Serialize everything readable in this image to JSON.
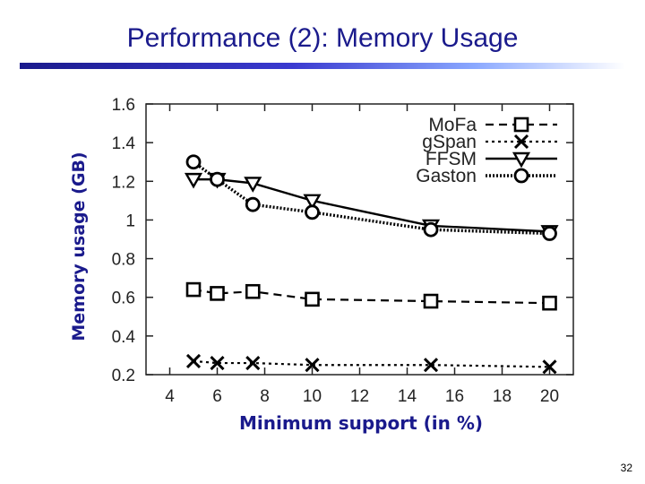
{
  "slide": {
    "title": "Performance (2): Memory Usage",
    "page_number": "32"
  },
  "colors": {
    "title": "#1a1a8c",
    "series": "#000000"
  },
  "chart_data": {
    "type": "line",
    "title": "",
    "xlabel": "Minimum support (in %)",
    "ylabel": "Memory usage (GB)",
    "xlim": [
      3,
      21
    ],
    "ylim": [
      0.2,
      1.6
    ],
    "xticks": [
      "4",
      "6",
      "8",
      "10",
      "12",
      "14",
      "16",
      "18",
      "20"
    ],
    "yticks": [
      "0.2",
      "0.4",
      "0.6",
      "0.8",
      "1",
      "1.2",
      "1.4",
      "1.6"
    ],
    "grid": false,
    "legend_position": "top-right",
    "series": [
      {
        "name": "MoFa",
        "line": "dashed",
        "marker": "square",
        "x": [
          5,
          6,
          7.5,
          10,
          15,
          20
        ],
        "y": [
          0.64,
          0.62,
          0.63,
          0.59,
          0.58,
          0.57
        ]
      },
      {
        "name": "gSpan",
        "line": "dotted",
        "marker": "x",
        "x": [
          5,
          6,
          7.5,
          10,
          15,
          20
        ],
        "y": [
          0.27,
          0.26,
          0.26,
          0.25,
          0.25,
          0.24
        ]
      },
      {
        "name": "FFSM",
        "line": "solid",
        "marker": "triangle-down",
        "x": [
          5,
          6,
          7.5,
          10,
          15,
          20
        ],
        "y": [
          1.21,
          1.21,
          1.19,
          1.1,
          0.97,
          0.94
        ]
      },
      {
        "name": "Gaston",
        "line": "dense-dotted",
        "marker": "circle",
        "x": [
          5,
          6,
          7.5,
          10,
          15,
          20
        ],
        "y": [
          1.3,
          1.21,
          1.08,
          1.04,
          0.95,
          0.93
        ]
      }
    ]
  }
}
